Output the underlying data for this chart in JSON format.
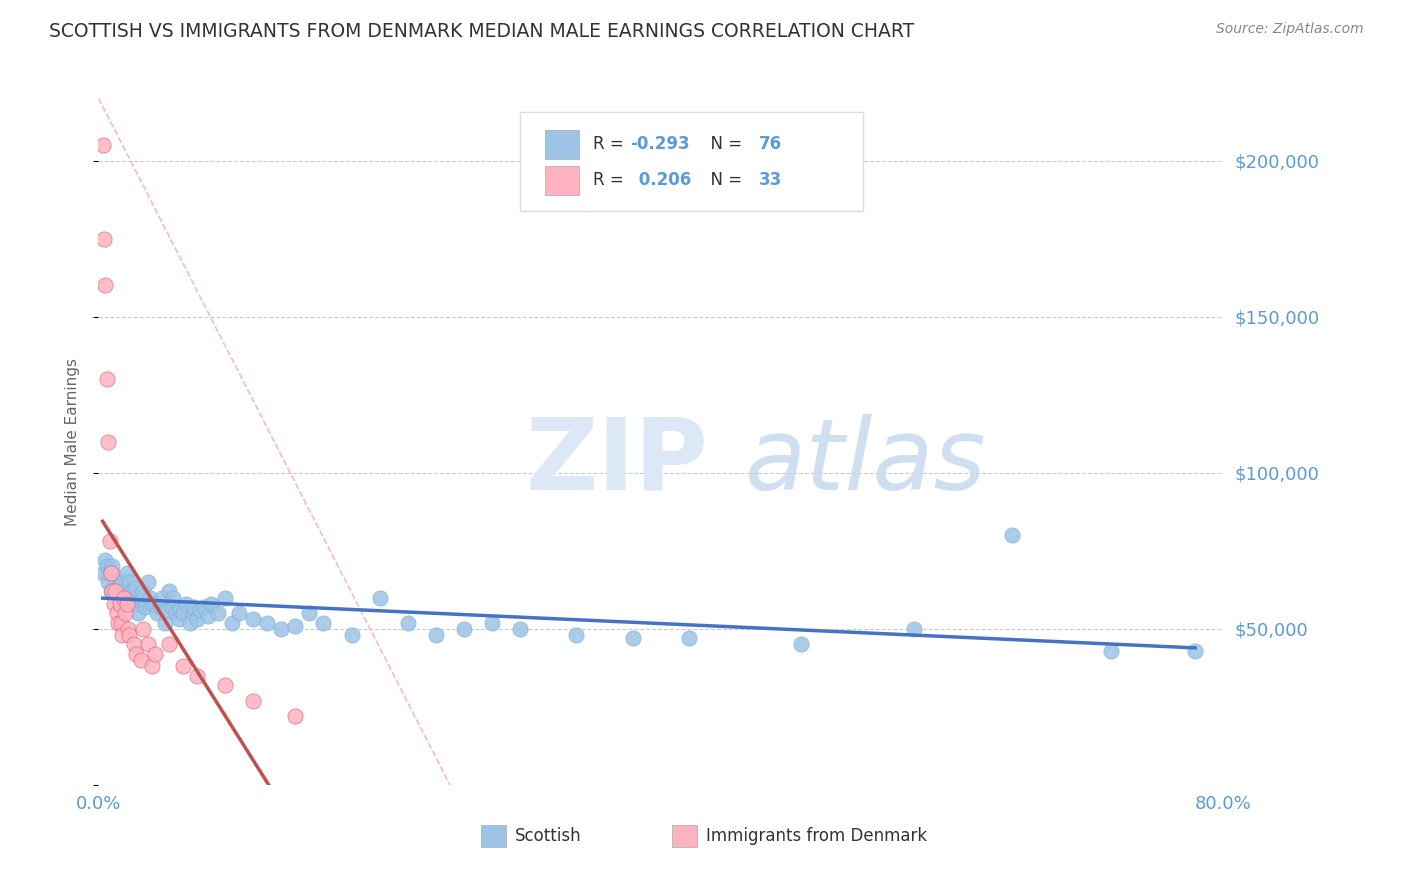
{
  "title": "SCOTTISH VS IMMIGRANTS FROM DENMARK MEDIAN MALE EARNINGS CORRELATION CHART",
  "source": "Source: ZipAtlas.com",
  "ylabel": "Median Male Earnings",
  "xlim": [
    0.0,
    0.8
  ],
  "ylim": [
    0,
    220000
  ],
  "yticks": [
    0,
    50000,
    100000,
    150000,
    200000
  ],
  "ytick_labels": [
    "",
    "$50,000",
    "$100,000",
    "$150,000",
    "$200,000"
  ],
  "xticks": [
    0.0,
    0.1,
    0.2,
    0.3,
    0.4,
    0.5,
    0.6,
    0.7,
    0.8
  ],
  "xtick_labels": [
    "0.0%",
    "",
    "",
    "",
    "",
    "",
    "",
    "",
    "80.0%"
  ],
  "axis_color": "#5b9bd5",
  "blue_color": "#9dc3e6",
  "pink_color": "#ffb3c1",
  "blue_line_color": "#4472c4",
  "pink_line_color": "#c0504d",
  "blue_dot_edge": "#7bafd4",
  "pink_dot_edge": "#e06070",
  "scottish_x": [
    0.003,
    0.005,
    0.006,
    0.007,
    0.008,
    0.009,
    0.01,
    0.011,
    0.012,
    0.013,
    0.014,
    0.015,
    0.016,
    0.017,
    0.018,
    0.019,
    0.02,
    0.022,
    0.023,
    0.025,
    0.026,
    0.027,
    0.028,
    0.03,
    0.032,
    0.033,
    0.035,
    0.037,
    0.038,
    0.04,
    0.042,
    0.044,
    0.045,
    0.047,
    0.048,
    0.05,
    0.052,
    0.053,
    0.055,
    0.057,
    0.058,
    0.06,
    0.062,
    0.065,
    0.067,
    0.068,
    0.07,
    0.072,
    0.075,
    0.078,
    0.08,
    0.085,
    0.09,
    0.095,
    0.1,
    0.11,
    0.12,
    0.13,
    0.14,
    0.15,
    0.16,
    0.18,
    0.2,
    0.22,
    0.24,
    0.26,
    0.28,
    0.3,
    0.34,
    0.38,
    0.42,
    0.5,
    0.58,
    0.65,
    0.72,
    0.78
  ],
  "scottish_y": [
    68000,
    72000,
    70000,
    65000,
    68000,
    62000,
    70000,
    67000,
    65000,
    63000,
    60000,
    64000,
    62000,
    65000,
    58000,
    60000,
    68000,
    65000,
    62000,
    60000,
    63000,
    58000,
    55000,
    60000,
    62000,
    57000,
    65000,
    60000,
    58000,
    58000,
    55000,
    57000,
    60000,
    52000,
    56000,
    62000,
    57000,
    60000,
    55000,
    53000,
    56000,
    55000,
    58000,
    52000,
    55000,
    57000,
    53000,
    56000,
    57000,
    54000,
    58000,
    55000,
    60000,
    52000,
    55000,
    53000,
    52000,
    50000,
    51000,
    55000,
    52000,
    48000,
    60000,
    52000,
    48000,
    50000,
    52000,
    50000,
    48000,
    47000,
    47000,
    45000,
    50000,
    80000,
    43000,
    43000
  ],
  "denmark_x": [
    0.003,
    0.004,
    0.005,
    0.006,
    0.007,
    0.008,
    0.009,
    0.01,
    0.011,
    0.012,
    0.013,
    0.014,
    0.015,
    0.016,
    0.017,
    0.018,
    0.019,
    0.02,
    0.021,
    0.022,
    0.025,
    0.027,
    0.03,
    0.032,
    0.035,
    0.038,
    0.04,
    0.05,
    0.06,
    0.07,
    0.09,
    0.11,
    0.14
  ],
  "denmark_y": [
    205000,
    175000,
    160000,
    130000,
    110000,
    78000,
    68000,
    62000,
    58000,
    62000,
    55000,
    52000,
    58000,
    52000,
    48000,
    60000,
    55000,
    58000,
    50000,
    48000,
    45000,
    42000,
    40000,
    50000,
    45000,
    38000,
    42000,
    45000,
    38000,
    35000,
    32000,
    27000,
    22000
  ]
}
